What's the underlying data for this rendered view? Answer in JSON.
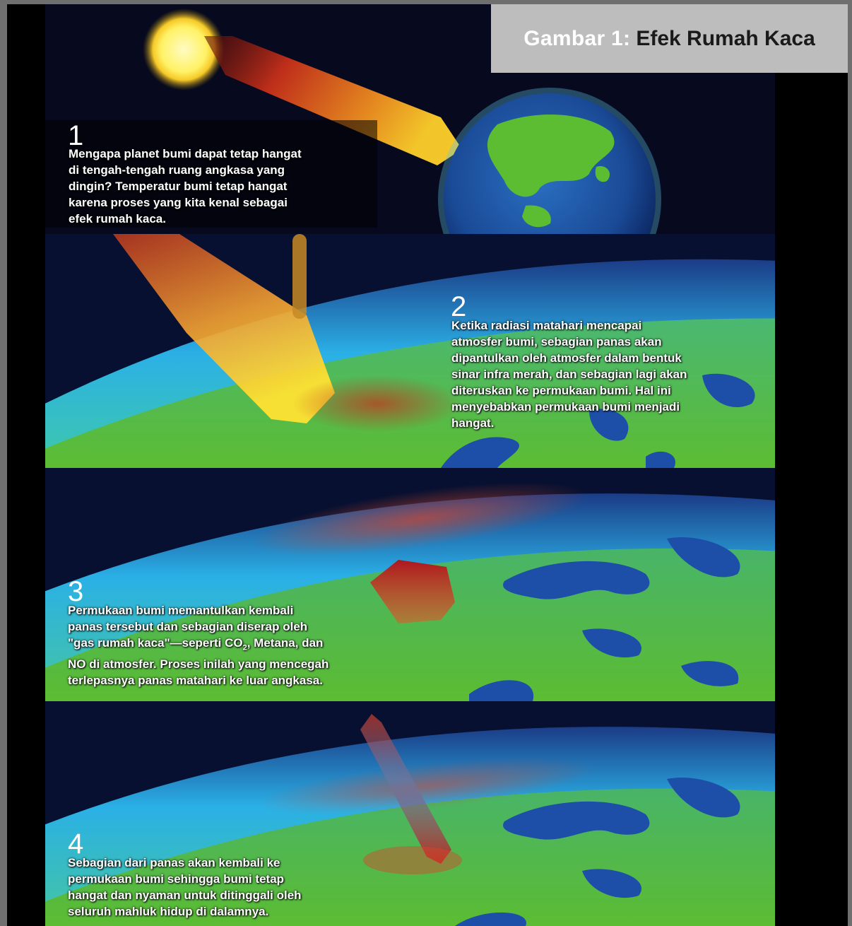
{
  "title": {
    "label": "Gambar 1:",
    "text": "Efek Rumah Kaca"
  },
  "steps": [
    {
      "number": "1",
      "text": "Mengapa planet bumi dapat tetap hangat\ndi tengah-tengah ruang angkasa yang\ndingin? Temperatur bumi tetap hangat\nkarena proses yang kita kenal sebagai\nefek rumah kaca."
    },
    {
      "number": "2",
      "text": "Ketika radiasi matahari mencapai\natmosfer bumi, sebagian panas akan\ndipantulkan oleh atmosfer dalam bentuk\nsinar infra merah, dan sebagian lagi akan\nditeruskan ke permukaan bumi. Hal ini\nmenyebabkan permukaan bumi menjadi\nhangat."
    },
    {
      "number": "3",
      "text_before_sub": "Permukaan bumi memantulkan kembali\npanas tersebut dan sebagian diserap oleh\n\"gas rumah kaca\"—seperti CO",
      "subscript": "2",
      "text_after_sub": ", Metana, dan\nNO di atmosfer. Proses inilah yang mencegah\nterlepasnya panas matahari ke luar angkasa."
    },
    {
      "number": "4",
      "text": "Sebagian dari panas akan kembali ke\npermukaan bumi sehingga bumi tetap\nhangat dan nyaman untuk ditinggali oleh\nseluruh mahluk hidup di dalamnya."
    }
  ],
  "colors": {
    "space": "#070a1e",
    "sun": "#fff47a",
    "ocean": "#1d4fa8",
    "land": "#5cbc32",
    "atmosphere": "#36b6e8",
    "heat": "#d9342b",
    "title_box": "#bdbdbd"
  }
}
